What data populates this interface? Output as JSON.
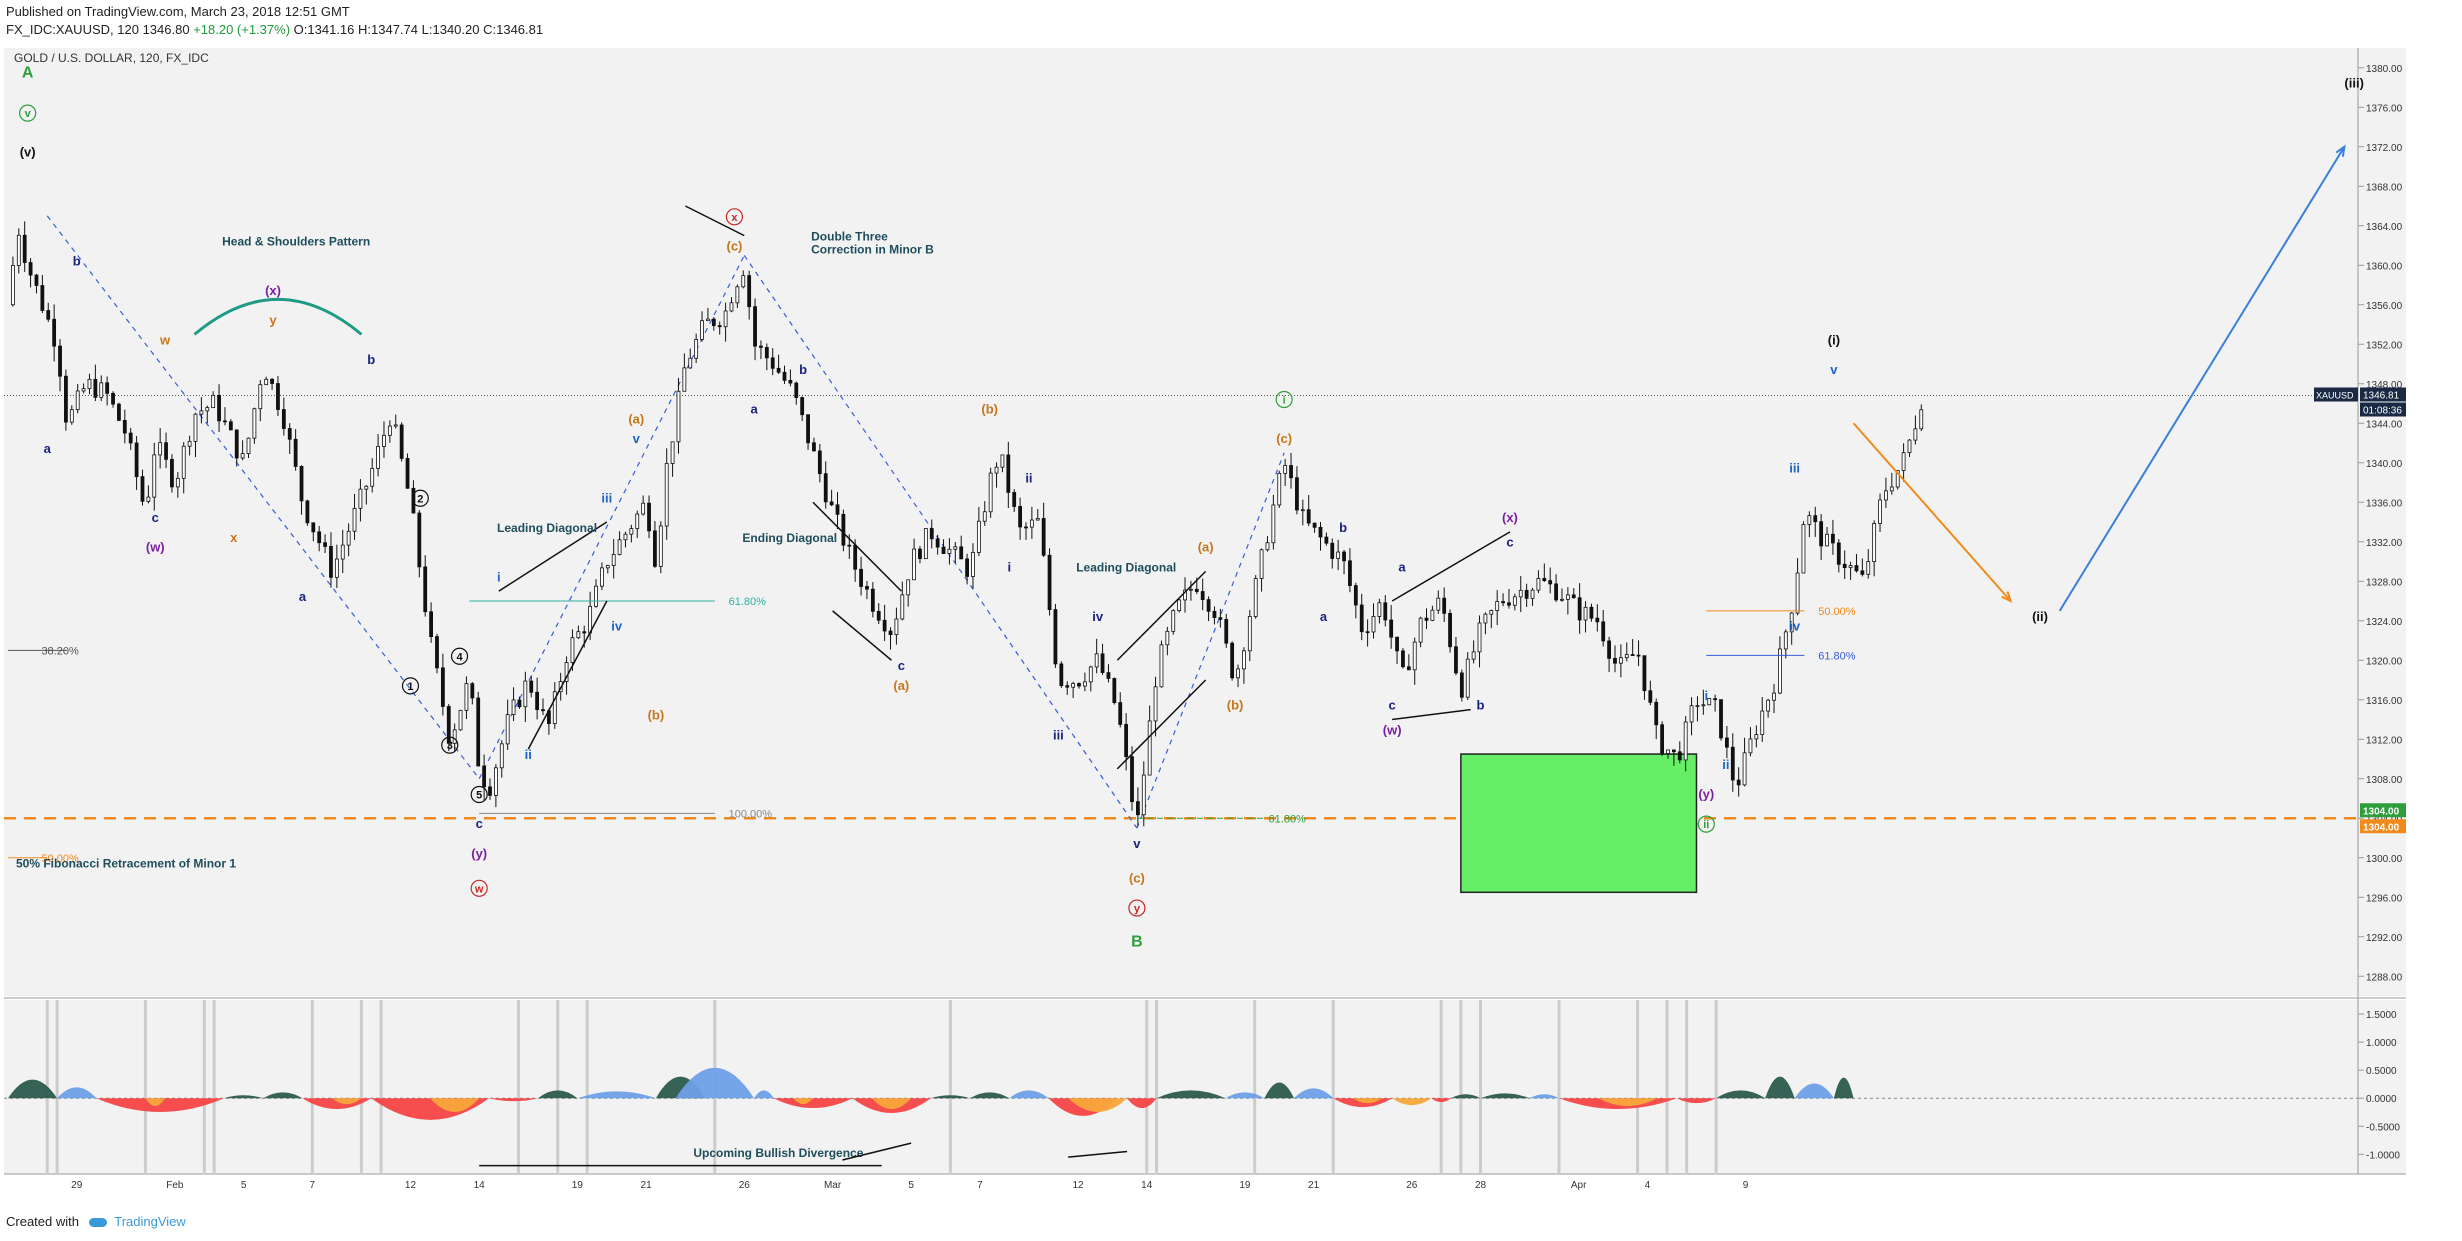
{
  "header": {
    "published": "Published on TradingView.com, March 23, 2018 12:51 GMT",
    "symbol_line": "FX_IDC:XAUUSD, 120",
    "last": "1346.80",
    "change": "+18.20 (+1.37%)",
    "open": "O:1341.16",
    "high": "H:1347.74",
    "low": "L:1340.20",
    "close": "C:1346.81"
  },
  "footer": {
    "created_with": "Created with",
    "brand": "TradingView"
  },
  "colors": {
    "background": "#f2f2f2",
    "candle": "#111111",
    "wave_label_navy": "#1a237e",
    "wave_label_purple": "#7b1fa2",
    "wave_label_orange": "#c7761a",
    "wave_label_blue": "#1e63c5",
    "fib_orange": "#f08a1c",
    "green_zone": "#66ee66",
    "osc_blue": "#6f9fe8",
    "osc_dark": "#2c5a4d",
    "osc_red": "#f54545",
    "osc_orange": "#f7a73a"
  },
  "chart_data": {
    "type": "candlestick",
    "title": "GOLD / U.S. DOLLAR, 120, FX_IDC",
    "symbol": "XAUUSD",
    "price_axis": {
      "ticks": [
        "1380.00",
        "1376.00",
        "1372.00",
        "1368.00",
        "1364.00",
        "1360.00",
        "1356.00",
        "1352.00",
        "1348.00",
        "1344.00",
        "1340.00",
        "1336.00",
        "1332.00",
        "1328.00",
        "1324.00",
        "1320.00",
        "1316.00",
        "1312.00",
        "1308.00",
        "1304.00",
        "1300.00",
        "1296.00",
        "1292.00",
        "1288.00"
      ],
      "range": [
        1286,
        1382
      ],
      "last_price_label": "XAUUSD",
      "last_price": "1346.81",
      "countdown": "01:08:36",
      "level_labels": [
        "1304.00",
        "1304.00"
      ]
    },
    "oscillator_axis": {
      "ticks": [
        "1.5000",
        "1.0000",
        "0.5000",
        "0.0000",
        "-0.5000",
        "-1.0000"
      ],
      "range": [
        -1.35,
        1.75
      ]
    },
    "time_axis": [
      "29",
      "Feb",
      "5",
      "7",
      "12",
      "14",
      "19",
      "21",
      "26",
      "Mar",
      "5",
      "7",
      "12",
      "14",
      "19",
      "21",
      "26",
      "28",
      "Apr",
      "4",
      "9"
    ],
    "price_path": [
      [
        0,
        1356
      ],
      [
        1,
        1364
      ],
      [
        2,
        1360
      ],
      [
        5,
        1352
      ],
      [
        6,
        1344
      ],
      [
        8,
        1348
      ],
      [
        10,
        1347
      ],
      [
        12,
        1343
      ],
      [
        14,
        1335
      ],
      [
        15,
        1342
      ],
      [
        17,
        1338
      ],
      [
        19,
        1345
      ],
      [
        21,
        1346
      ],
      [
        24,
        1340
      ],
      [
        26,
        1350
      ],
      [
        28,
        1345
      ],
      [
        30,
        1336
      ],
      [
        33,
        1329
      ],
      [
        35,
        1334
      ],
      [
        37,
        1339
      ],
      [
        39,
        1345
      ],
      [
        41,
        1336
      ],
      [
        43,
        1322
      ],
      [
        45,
        1312
      ],
      [
        47,
        1318
      ],
      [
        48,
        1309
      ],
      [
        49,
        1307
      ],
      [
        51,
        1314
      ],
      [
        53,
        1318
      ],
      [
        55,
        1313
      ],
      [
        57,
        1321
      ],
      [
        59,
        1324
      ],
      [
        61,
        1330
      ],
      [
        63,
        1333
      ],
      [
        65,
        1336
      ],
      [
        66,
        1330
      ],
      [
        67,
        1339
      ],
      [
        69,
        1350
      ],
      [
        71,
        1354
      ],
      [
        73,
        1355
      ],
      [
        74,
        1358
      ],
      [
        75,
        1360
      ],
      [
        76,
        1352
      ],
      [
        78,
        1350
      ],
      [
        80,
        1347
      ],
      [
        82,
        1341
      ],
      [
        84,
        1335
      ],
      [
        86,
        1330
      ],
      [
        88,
        1326
      ],
      [
        90,
        1323
      ],
      [
        92,
        1330
      ],
      [
        94,
        1333
      ],
      [
        96,
        1331
      ],
      [
        98,
        1329
      ],
      [
        100,
        1338
      ],
      [
        101,
        1341
      ],
      [
        103,
        1333
      ],
      [
        105,
        1334
      ],
      [
        107,
        1318
      ],
      [
        109,
        1318
      ],
      [
        111,
        1320
      ],
      [
        113,
        1315
      ],
      [
        115,
        1303
      ],
      [
        117,
        1319
      ],
      [
        119,
        1325
      ],
      [
        121,
        1328
      ],
      [
        123,
        1325
      ],
      [
        125,
        1318
      ],
      [
        127,
        1327
      ],
      [
        129,
        1336
      ],
      [
        130,
        1340
      ],
      [
        132,
        1334
      ],
      [
        134,
        1332
      ],
      [
        136,
        1330
      ],
      [
        138,
        1323
      ],
      [
        140,
        1326
      ],
      [
        142,
        1318
      ],
      [
        144,
        1324
      ],
      [
        146,
        1326
      ],
      [
        148,
        1317
      ],
      [
        150,
        1323
      ],
      [
        152,
        1326
      ],
      [
        154,
        1327
      ],
      [
        156,
        1328
      ],
      [
        158,
        1327
      ],
      [
        160,
        1325
      ],
      [
        162,
        1324
      ],
      [
        164,
        1319
      ],
      [
        166,
        1321
      ],
      [
        168,
        1312
      ],
      [
        170,
        1310
      ],
      [
        172,
        1316
      ],
      [
        174,
        1315
      ],
      [
        176,
        1307
      ],
      [
        178,
        1313
      ],
      [
        180,
        1318
      ],
      [
        182,
        1327
      ],
      [
        183,
        1335
      ],
      [
        185,
        1332
      ],
      [
        187,
        1330
      ],
      [
        189,
        1328
      ],
      [
        191,
        1337
      ],
      [
        193,
        1340
      ],
      [
        194,
        1343
      ],
      [
        195,
        1346.8
      ]
    ],
    "zigzag_segments": [
      [
        [
          4,
          1365
        ],
        [
          48,
          1308
        ]
      ],
      [
        [
          48,
          1308
        ],
        [
          75,
          1361
        ]
      ],
      [
        [
          75,
          1361
        ],
        [
          115,
          1303
        ]
      ],
      [
        [
          115,
          1303
        ],
        [
          130,
          1341
        ]
      ]
    ],
    "fib_levels": [
      {
        "label": "38.20%",
        "price": 1321
      },
      {
        "label": "50.00%",
        "price": 1300
      },
      {
        "label": "61.80%",
        "price": 1326
      },
      {
        "label": "100.00%",
        "price": 1304.5
      },
      {
        "label": "61.80%",
        "price": 1304
      },
      {
        "label": "50.00%",
        "price": 1325
      },
      {
        "label": "61.80%",
        "price": 1320.5
      }
    ],
    "support_level": 1304.0,
    "target_zone": {
      "x_from": 148,
      "x_to": 172,
      "y_from": 1296.5,
      "y_to": 1310.5
    },
    "annotations": [
      "Head & Shoulders Pattern",
      "Leading Diagonal",
      "Double Three",
      "Correction in Minor B",
      "Ending Diagonal",
      "Leading Diagonal",
      "50% Fibonacci Retracement of Minor 1",
      "Upcoming Bullish Divergence"
    ],
    "wave_labels": [
      {
        "t": "A",
        "x": 2,
        "p": 1379,
        "c": "#2e9e3a",
        "s": 16
      },
      {
        "t": "v",
        "x": 2,
        "p": 1375,
        "c": "#2e9e3a",
        "circ": true
      },
      {
        "t": "(v)",
        "x": 2,
        "p": 1371,
        "c": "#111"
      },
      {
        "t": "b",
        "x": 7,
        "p": 1360,
        "c": "#1a237e"
      },
      {
        "t": "a",
        "x": 4,
        "p": 1341,
        "c": "#1a237e"
      },
      {
        "t": "w",
        "x": 16,
        "p": 1352,
        "c": "#c7761a"
      },
      {
        "t": "c",
        "x": 15,
        "p": 1334,
        "c": "#1a237e"
      },
      {
        "t": "(w)",
        "x": 15,
        "p": 1331,
        "c": "#7b1fa2"
      },
      {
        "t": "x",
        "x": 23,
        "p": 1332,
        "c": "#c7761a"
      },
      {
        "t": "(x)",
        "x": 27,
        "p": 1357,
        "c": "#7b1fa2"
      },
      {
        "t": "y",
        "x": 27,
        "p": 1354,
        "c": "#c7761a"
      },
      {
        "t": "b",
        "x": 37,
        "p": 1350,
        "c": "#1a237e"
      },
      {
        "t": "a",
        "x": 30,
        "p": 1326,
        "c": "#1a237e"
      },
      {
        "t": "2",
        "x": 42,
        "p": 1336,
        "c": "#111",
        "circ": true
      },
      {
        "t": "4",
        "x": 46,
        "p": 1320,
        "c": "#111",
        "circ": true
      },
      {
        "t": "1",
        "x": 41,
        "p": 1317,
        "c": "#111",
        "circ": true
      },
      {
        "t": "3",
        "x": 45,
        "p": 1311,
        "c": "#111",
        "circ": true
      },
      {
        "t": "5",
        "x": 48,
        "p": 1306,
        "c": "#111",
        "circ": true
      },
      {
        "t": "c",
        "x": 48,
        "p": 1303,
        "c": "#1a237e"
      },
      {
        "t": "(y)",
        "x": 48,
        "p": 1300,
        "c": "#7b1fa2"
      },
      {
        "t": "w",
        "x": 48,
        "p": 1296.5,
        "c": "#c62828",
        "circ": true
      },
      {
        "t": "i",
        "x": 50,
        "p": 1328,
        "c": "#1e63c5"
      },
      {
        "t": "ii",
        "x": 53,
        "p": 1310,
        "c": "#1e63c5"
      },
      {
        "t": "iii",
        "x": 61,
        "p": 1336,
        "c": "#1e63c5"
      },
      {
        "t": "iv",
        "x": 62,
        "p": 1323,
        "c": "#1e63c5"
      },
      {
        "t": "v",
        "x": 64,
        "p": 1342,
        "c": "#1e63c5"
      },
      {
        "t": "(a)",
        "x": 64,
        "p": 1344,
        "c": "#c7761a"
      },
      {
        "t": "(b)",
        "x": 66,
        "p": 1314,
        "c": "#c7761a"
      },
      {
        "t": "x",
        "x": 74,
        "p": 1364.5,
        "c": "#c62828",
        "circ": true
      },
      {
        "t": "(c)",
        "x": 74,
        "p": 1361.5,
        "c": "#c7761a"
      },
      {
        "t": "b",
        "x": 81,
        "p": 1349,
        "c": "#1a237e"
      },
      {
        "t": "a",
        "x": 76,
        "p": 1345,
        "c": "#1a237e"
      },
      {
        "t": "c",
        "x": 91,
        "p": 1319,
        "c": "#1a237e"
      },
      {
        "t": "(a)",
        "x": 91,
        "p": 1317,
        "c": "#c7761a"
      },
      {
        "t": "(b)",
        "x": 100,
        "p": 1345,
        "c": "#c7761a"
      },
      {
        "t": "ii",
        "x": 104,
        "p": 1338,
        "c": "#1a237e"
      },
      {
        "t": "i",
        "x": 102,
        "p": 1329,
        "c": "#1a237e"
      },
      {
        "t": "iv",
        "x": 111,
        "p": 1324,
        "c": "#1a237e"
      },
      {
        "t": "iii",
        "x": 107,
        "p": 1312,
        "c": "#1a237e"
      },
      {
        "t": "v",
        "x": 115,
        "p": 1301,
        "c": "#1a237e"
      },
      {
        "t": "(c)",
        "x": 115,
        "p": 1297.5,
        "c": "#c7761a"
      },
      {
        "t": "y",
        "x": 115,
        "p": 1294.5,
        "c": "#c62828",
        "circ": true
      },
      {
        "t": "B",
        "x": 115,
        "p": 1291,
        "c": "#2e9e3a",
        "s": 16
      },
      {
        "t": "(a)",
        "x": 122,
        "p": 1331,
        "c": "#c7761a"
      },
      {
        "t": "(b)",
        "x": 125,
        "p": 1315,
        "c": "#c7761a"
      },
      {
        "t": "i",
        "x": 130,
        "p": 1346,
        "c": "#2e9e3a",
        "circ": true
      },
      {
        "t": "(c)",
        "x": 130,
        "p": 1342,
        "c": "#c7761a"
      },
      {
        "t": "b",
        "x": 136,
        "p": 1333,
        "c": "#1a237e"
      },
      {
        "t": "a",
        "x": 134,
        "p": 1324,
        "c": "#1a237e"
      },
      {
        "t": "a",
        "x": 142,
        "p": 1329,
        "c": "#1a237e"
      },
      {
        "t": "c",
        "x": 141,
        "p": 1315,
        "c": "#1a237e"
      },
      {
        "t": "(w)",
        "x": 141,
        "p": 1312.5,
        "c": "#7b1fa2"
      },
      {
        "t": "b",
        "x": 150,
        "p": 1315,
        "c": "#1a237e"
      },
      {
        "t": "(x)",
        "x": 153,
        "p": 1334,
        "c": "#7b1fa2"
      },
      {
        "t": "c",
        "x": 153,
        "p": 1331.5,
        "c": "#1a237e"
      },
      {
        "t": "i",
        "x": 173,
        "p": 1316,
        "c": "#1e63c5"
      },
      {
        "t": "ii",
        "x": 175,
        "p": 1309,
        "c": "#1e63c5"
      },
      {
        "t": "(y)",
        "x": 173,
        "p": 1306,
        "c": "#7b1fa2"
      },
      {
        "t": "ii",
        "x": 173,
        "p": 1303,
        "c": "#2e9e3a",
        "circ": true
      },
      {
        "t": "iii",
        "x": 182,
        "p": 1339,
        "c": "#1e63c5"
      },
      {
        "t": "iv",
        "x": 182,
        "p": 1323,
        "c": "#1e63c5"
      },
      {
        "t": "(i)",
        "x": 186,
        "p": 1352,
        "c": "#111"
      },
      {
        "t": "v",
        "x": 186,
        "p": 1349,
        "c": "#1e63c5"
      },
      {
        "t": "(ii)",
        "x": 207,
        "p": 1324,
        "c": "#111"
      },
      {
        "t": "(iii)",
        "x": 239,
        "p": 1378,
        "c": "#111"
      }
    ],
    "oscillator_segments": [
      {
        "from": 0,
        "to": 5,
        "v": 0.95,
        "c": "#2c5a4d"
      },
      {
        "from": 5,
        "to": 9,
        "v": 0.55,
        "c": "#6f9fe8"
      },
      {
        "from": 9,
        "to": 22,
        "v": -0.7,
        "c": "#f54545"
      },
      {
        "from": 14,
        "to": 16,
        "v": -0.4,
        "c": "#f7a73a"
      },
      {
        "from": 22,
        "to": 26,
        "v": 0.15,
        "c": "#2c5a4d"
      },
      {
        "from": 26,
        "to": 30,
        "v": 0.3,
        "c": "#2c5a4d"
      },
      {
        "from": 30,
        "to": 37,
        "v": -0.55,
        "c": "#f54545"
      },
      {
        "from": 33,
        "to": 36,
        "v": -0.3,
        "c": "#f7a73a"
      },
      {
        "from": 37,
        "to": 49,
        "v": -1.1,
        "c": "#f54545"
      },
      {
        "from": 43,
        "to": 48,
        "v": -0.7,
        "c": "#f7a73a"
      },
      {
        "from": 49,
        "to": 54,
        "v": -0.15,
        "c": "#f54545"
      },
      {
        "from": 54,
        "to": 58,
        "v": 0.4,
        "c": "#2c5a4d"
      },
      {
        "from": 58,
        "to": 66,
        "v": 0.35,
        "c": "#6f9fe8"
      },
      {
        "from": 66,
        "to": 71,
        "v": 1.1,
        "c": "#2c5a4d"
      },
      {
        "from": 68,
        "to": 76,
        "v": 1.55,
        "c": "#6f9fe8"
      },
      {
        "from": 76,
        "to": 78,
        "v": 0.4,
        "c": "#6f9fe8"
      },
      {
        "from": 78,
        "to": 86,
        "v": -0.5,
        "c": "#f54545"
      },
      {
        "from": 80,
        "to": 82,
        "v": -0.3,
        "c": "#f7a73a"
      },
      {
        "from": 86,
        "to": 94,
        "v": -0.75,
        "c": "#f54545"
      },
      {
        "from": 88,
        "to": 92,
        "v": -0.55,
        "c": "#f7a73a"
      },
      {
        "from": 94,
        "to": 98,
        "v": 0.15,
        "c": "#2c5a4d"
      },
      {
        "from": 98,
        "to": 102,
        "v": 0.3,
        "c": "#2c5a4d"
      },
      {
        "from": 102,
        "to": 106,
        "v": 0.4,
        "c": "#6f9fe8"
      },
      {
        "from": 106,
        "to": 113,
        "v": -0.9,
        "c": "#f54545"
      },
      {
        "from": 108,
        "to": 114,
        "v": -0.7,
        "c": "#f7a73a"
      },
      {
        "from": 114,
        "to": 117,
        "v": -0.5,
        "c": "#f54545"
      },
      {
        "from": 117,
        "to": 124,
        "v": 0.4,
        "c": "#2c5a4d"
      },
      {
        "from": 124,
        "to": 128,
        "v": 0.3,
        "c": "#6f9fe8"
      },
      {
        "from": 128,
        "to": 131,
        "v": 0.8,
        "c": "#2c5a4d"
      },
      {
        "from": 131,
        "to": 135,
        "v": 0.5,
        "c": "#6f9fe8"
      },
      {
        "from": 135,
        "to": 141,
        "v": -0.45,
        "c": "#f54545"
      },
      {
        "from": 137,
        "to": 140,
        "v": -0.25,
        "c": "#f7a73a"
      },
      {
        "from": 141,
        "to": 145,
        "v": -0.35,
        "c": "#f7a73a"
      },
      {
        "from": 145,
        "to": 147,
        "v": -0.2,
        "c": "#f54545"
      },
      {
        "from": 147,
        "to": 150,
        "v": 0.2,
        "c": "#2c5a4d"
      },
      {
        "from": 150,
        "to": 155,
        "v": 0.25,
        "c": "#2c5a4d"
      },
      {
        "from": 155,
        "to": 158,
        "v": 0.2,
        "c": "#6f9fe8"
      },
      {
        "from": 158,
        "to": 170,
        "v": -0.55,
        "c": "#f54545"
      },
      {
        "from": 162,
        "to": 168,
        "v": -0.4,
        "c": "#f7a73a"
      },
      {
        "from": 170,
        "to": 174,
        "v": -0.25,
        "c": "#f54545"
      },
      {
        "from": 174,
        "to": 179,
        "v": 0.4,
        "c": "#2c5a4d"
      },
      {
        "from": 179,
        "to": 182,
        "v": 1.1,
        "c": "#2c5a4d"
      },
      {
        "from": 182,
        "to": 186,
        "v": 0.75,
        "c": "#6f9fe8"
      },
      {
        "from": 186,
        "to": 188,
        "v": 1.05,
        "c": "#2c5a4d"
      }
    ],
    "forecast": [
      {
        "from": [
          188,
          1344
        ],
        "to": [
          204,
          1326
        ],
        "color": "#f08a1c"
      },
      {
        "from": [
          209,
          1325
        ],
        "to": [
          238,
          1372
        ],
        "color": "#3a7fd9"
      }
    ]
  }
}
